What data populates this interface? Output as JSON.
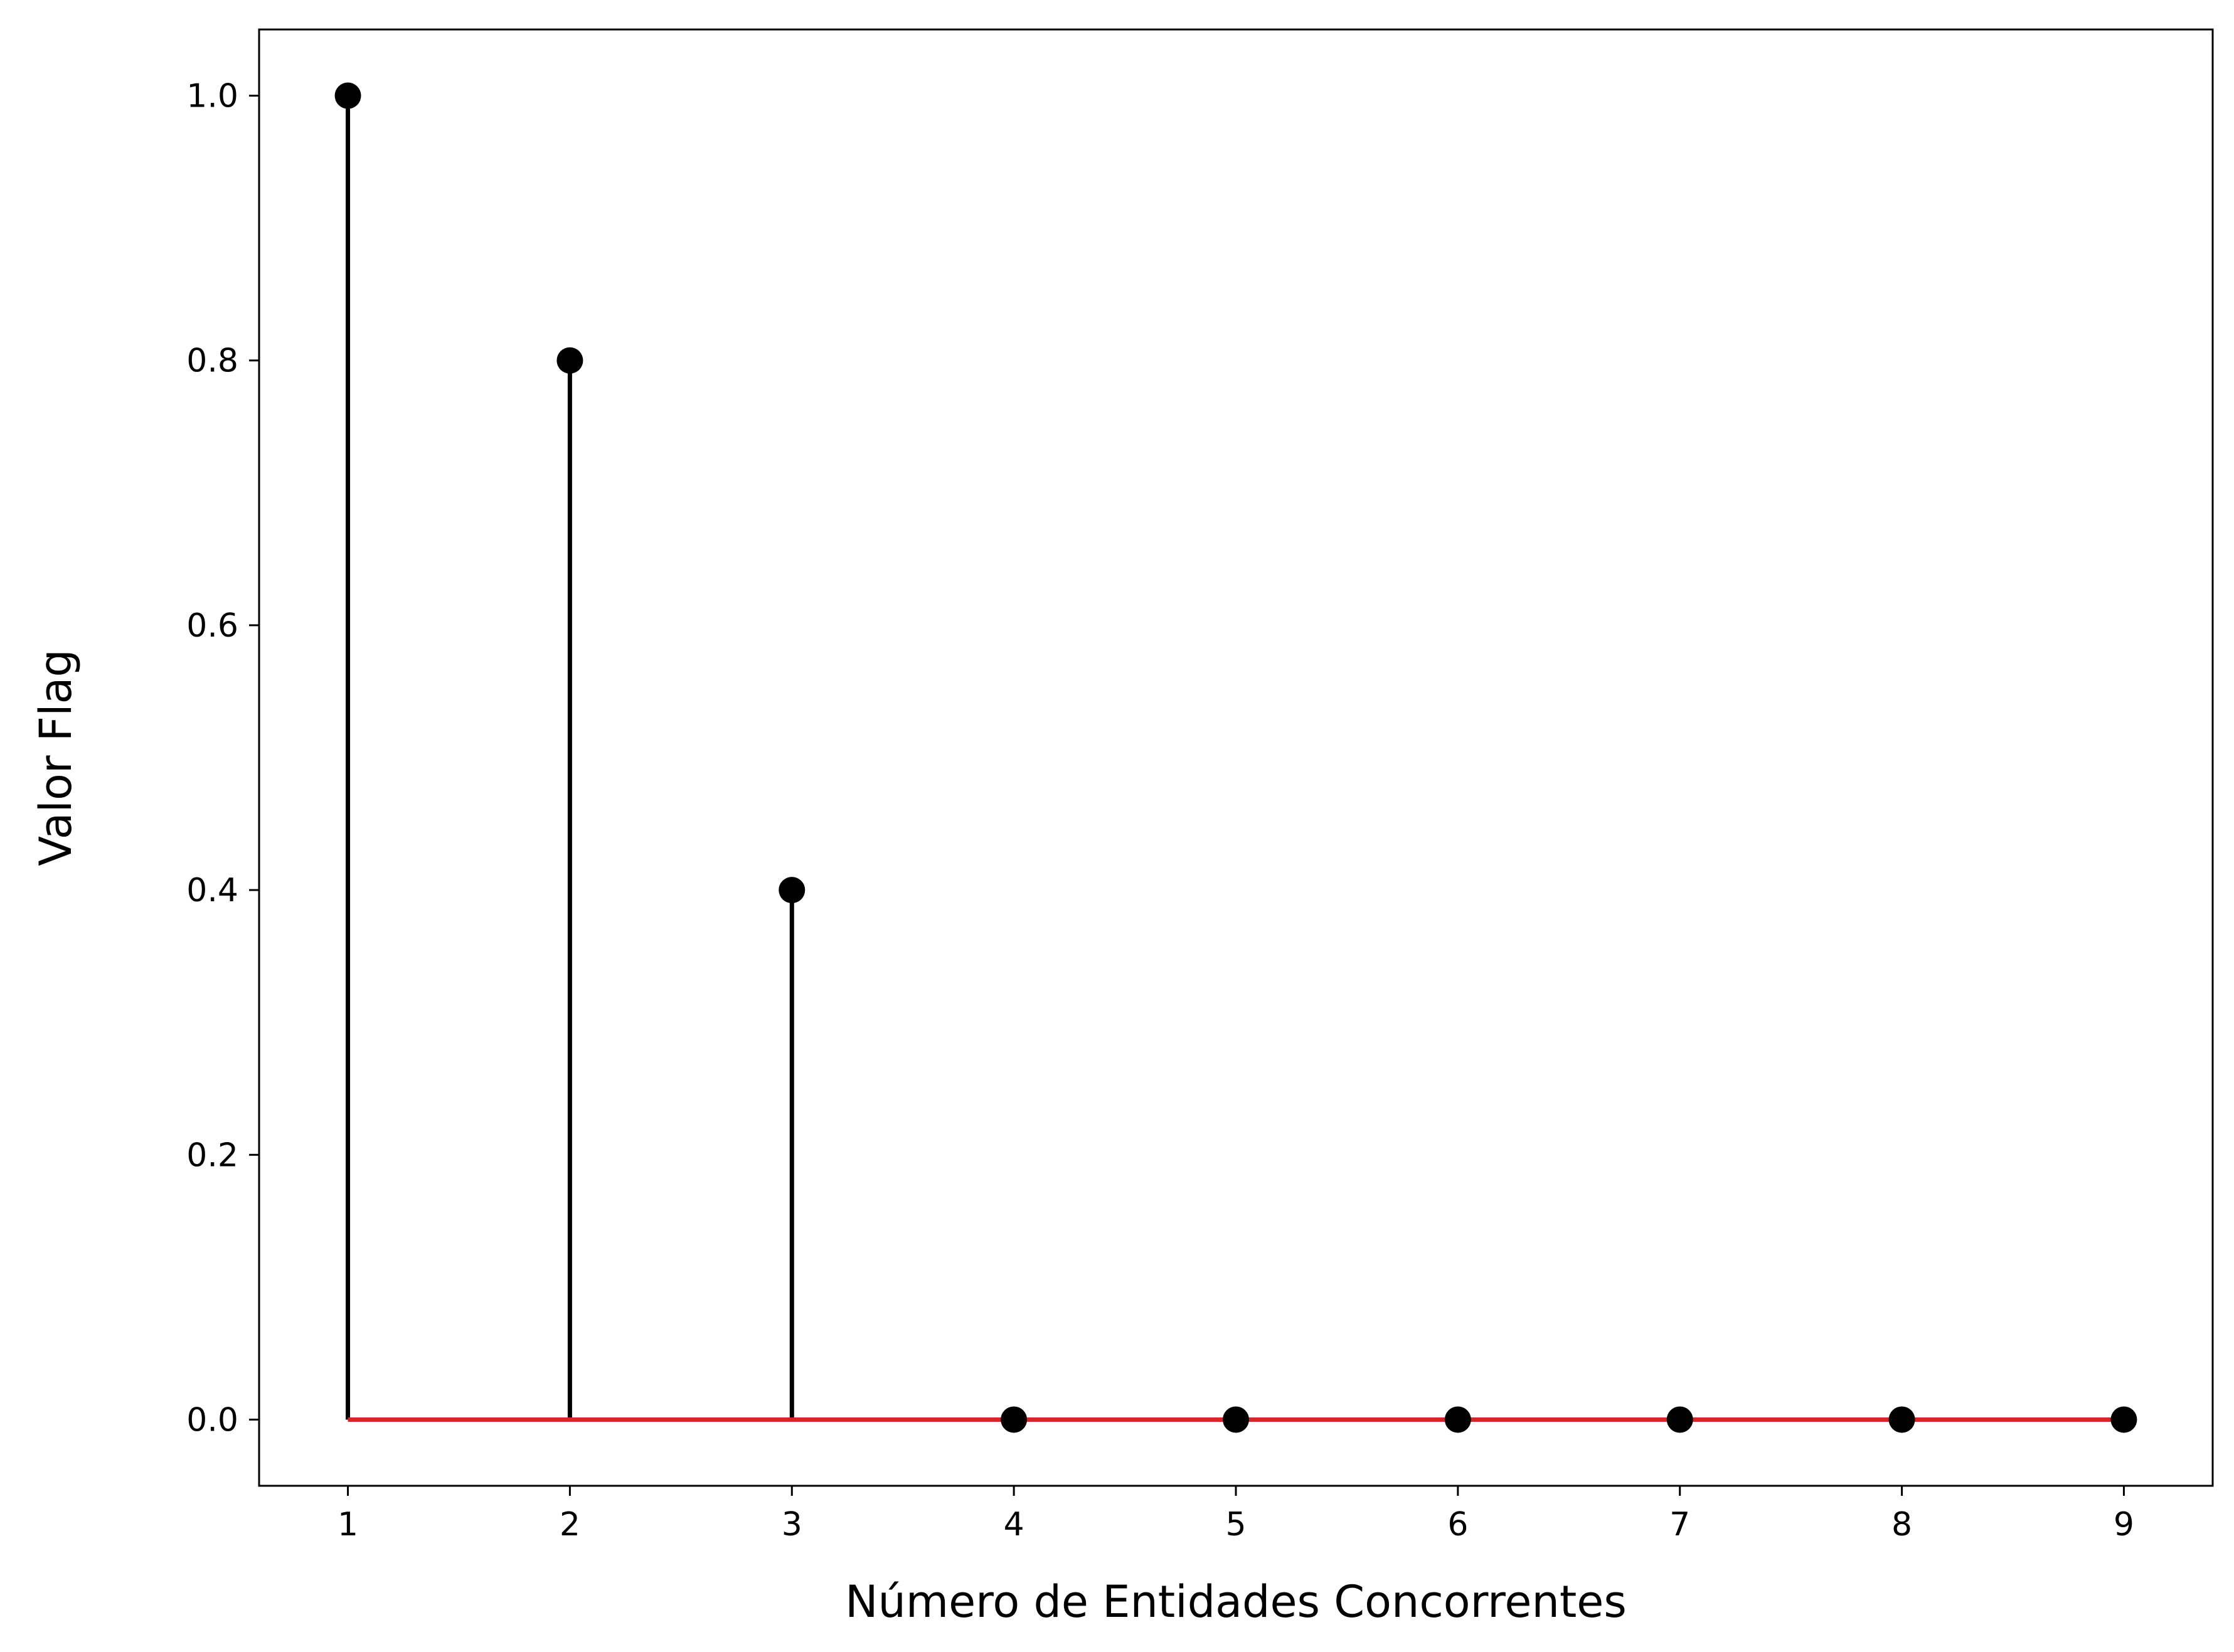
{
  "chart_data": {
    "type": "stem",
    "x": [
      1,
      2,
      3,
      4,
      5,
      6,
      7,
      8,
      9
    ],
    "values": [
      1.0,
      0.8,
      0.4,
      0.0,
      0.0,
      0.0,
      0.0,
      0.0,
      0.0
    ],
    "xlabel": "Número de Entidades Concorrentes",
    "ylabel": "Valor Flag",
    "xlim": [
      0.6,
      9.4
    ],
    "ylim": [
      -0.05,
      1.05
    ],
    "xticks": [
      "1",
      "2",
      "3",
      "4",
      "5",
      "6",
      "7",
      "8",
      "9"
    ],
    "yticks": [
      "0.0",
      "0.2",
      "0.4",
      "0.6",
      "0.8",
      "1.0"
    ],
    "grid": false,
    "colors": {
      "stem": "#000000",
      "marker": "#000000",
      "baseline": "#d62728"
    }
  }
}
